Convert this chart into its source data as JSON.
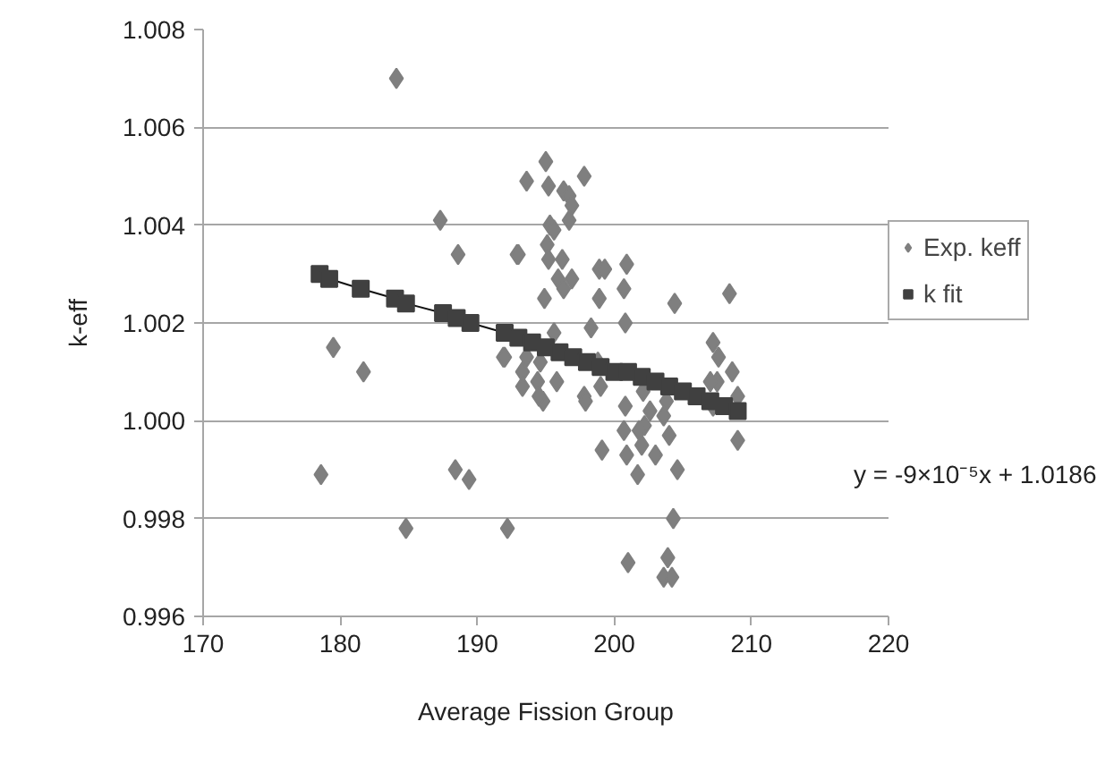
{
  "chart_data": {
    "type": "scatter",
    "xlabel": "Average Fission Group",
    "ylabel": "k-eff",
    "xlim": [
      170,
      220
    ],
    "xticks": [
      170,
      180,
      190,
      200,
      210,
      220
    ],
    "ylim": [
      0.996,
      1.008
    ],
    "yticks": [
      {
        "value": 0.996,
        "label": "0.996"
      },
      {
        "value": 0.998,
        "label": "0.998"
      },
      {
        "value": 1.0,
        "label": "1.000"
      },
      {
        "value": 1.002,
        "label": "1.002"
      },
      {
        "value": 1.004,
        "label": "1.004"
      },
      {
        "value": 1.006,
        "label": "1.006"
      },
      {
        "value": 1.008,
        "label": "1.008"
      }
    ],
    "grid": "y",
    "legend": "right",
    "annotations": [
      "y = -9×10⁻⁵x + 1.0186"
    ],
    "series": [
      {
        "name": "Exp. keff",
        "marker": "diamond",
        "color": "#7f7f7f",
        "x": [
          184.1,
          187.3,
          188.6,
          192.9,
          179.5,
          181.7,
          191.9,
          178.6,
          188.4,
          189.4,
          184.8,
          192.2,
          195.0,
          193.6,
          195.2,
          197.8,
          196.3,
          196.7,
          196.9,
          196.7,
          195.3,
          195.6,
          195.1,
          193.0,
          195.2,
          196.2,
          195.9,
          196.9,
          196.3,
          194.9,
          198.9,
          199.3,
          200.9,
          200.7,
          198.9,
          204.4,
          208.4,
          200.8,
          198.3,
          195.6,
          192.0,
          193.6,
          194.6,
          193.3,
          194.4,
          195.8,
          193.3,
          194.8,
          194.5,
          197.8,
          197.9,
          199.0,
          198.8,
          207.2,
          207.6,
          208.6,
          207.5,
          209.0,
          207.2,
          207.0,
          202.1,
          203.8,
          200.8,
          202.6,
          203.6,
          202.2,
          201.8,
          200.7,
          204.0,
          209.0,
          199.1,
          200.9,
          202.0,
          203.0,
          201.7,
          204.6,
          204.3,
          201.0,
          203.9,
          203.6,
          204.2
        ],
        "values": [
          1.007,
          1.0041,
          1.0034,
          1.0034,
          1.0015,
          1.001,
          1.0013,
          0.9989,
          0.999,
          0.9988,
          0.9978,
          0.9978,
          1.0053,
          1.0049,
          1.0048,
          1.005,
          1.0047,
          1.0046,
          1.0044,
          1.0041,
          1.004,
          1.0039,
          1.0036,
          1.0034,
          1.0033,
          1.0033,
          1.0029,
          1.0029,
          1.0027,
          1.0025,
          1.0031,
          1.0031,
          1.0032,
          1.0027,
          1.0025,
          1.0024,
          1.0026,
          1.002,
          1.0019,
          1.0018,
          1.0013,
          1.0013,
          1.0012,
          1.001,
          1.0008,
          1.0008,
          1.0007,
          1.0004,
          1.0005,
          1.0005,
          1.0004,
          1.0007,
          1.0012,
          1.0016,
          1.0013,
          1.001,
          1.0008,
          1.0005,
          1.0003,
          1.0008,
          1.0006,
          1.0004,
          1.0003,
          1.0002,
          1.0001,
          0.9999,
          0.9998,
          0.9998,
          0.9997,
          0.9996,
          0.9994,
          0.9993,
          0.9995,
          0.9993,
          0.9989,
          0.999,
          0.998,
          0.9971,
          0.9972,
          0.9968,
          0.9968
        ]
      },
      {
        "name": "k fit",
        "type": "line",
        "marker": "square",
        "color": "#404040",
        "x": [
          178.5,
          179.2,
          181.5,
          184.0,
          184.8,
          187.5,
          188.5,
          189.5,
          192.0,
          193.0,
          194.0,
          195.0,
          196.0,
          197.0,
          198.0,
          199.0,
          200.0,
          201.0,
          202.0,
          203.0,
          204.0,
          205.0,
          206.0,
          207.0,
          208.0,
          209.0
        ],
        "values": [
          1.003,
          1.0029,
          1.0027,
          1.0025,
          1.0024,
          1.0022,
          1.0021,
          1.002,
          1.0018,
          1.0017,
          1.0016,
          1.0015,
          1.0014,
          1.0013,
          1.0012,
          1.0011,
          1.001,
          1.001,
          1.0009,
          1.0008,
          1.0007,
          1.0006,
          1.0005,
          1.0004,
          1.0003,
          1.0002
        ]
      }
    ]
  }
}
